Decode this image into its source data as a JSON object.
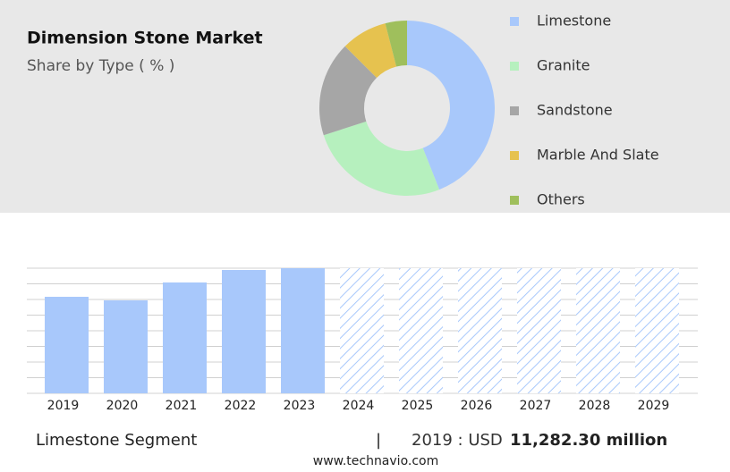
{
  "chart_data": [
    {
      "type": "pie",
      "title": "Dimension Stone Market",
      "subtitle": "Share by Type ( % )",
      "categories": [
        "Limestone",
        "Granite",
        "Sandstone",
        "Marble And Slate",
        "Others"
      ],
      "values": [
        44,
        26,
        17.5,
        8.5,
        4
      ],
      "colors": [
        "#a8c8fb",
        "#b6f0be",
        "#a6a6a6",
        "#e6c24f",
        "#9fbf5c"
      ]
    },
    {
      "type": "bar",
      "categories": [
        "2019",
        "2020",
        "2021",
        "2022",
        "2023",
        "2024",
        "2025",
        "2026",
        "2027",
        "2028",
        "2029"
      ],
      "values": [
        11282.3,
        10864,
        12954,
        14416,
        14625,
        null,
        null,
        null,
        null,
        null,
        null
      ],
      "color": "#a8c8fb",
      "ylim": [
        0,
        14625
      ]
    }
  ],
  "footer": {
    "segment": "Limestone Segment",
    "separator": "|",
    "year_label": "2019 : USD",
    "amount": "11,282.30 million",
    "source": "www.technavio.com"
  }
}
